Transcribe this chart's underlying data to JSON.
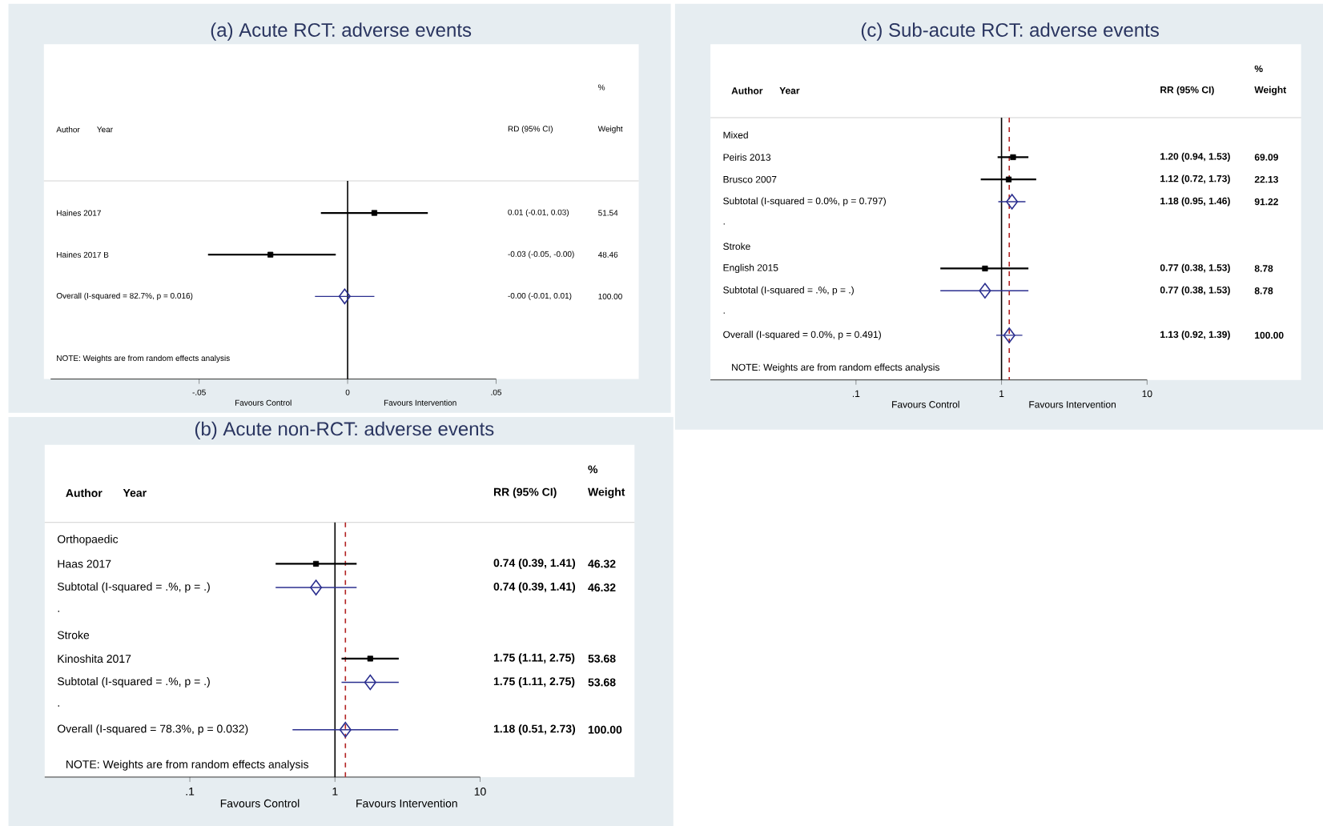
{
  "chart_data": [
    {
      "type": "scatter",
      "title": "(a) Acute RCT: adverse events",
      "orientation": "horizontal",
      "categories": [
        "Haines 2017",
        "Haines 2017 B",
        "Overall (I-squared = 82.7%, p = 0.016)"
      ],
      "series": [
        {
          "marker": "square",
          "color": "#000000",
          "values": [
            0.009,
            -0.026,
            null
          ],
          "errors": [
            [
              -0.009,
              0.027
            ],
            [
              -0.047,
              -0.004
            ],
            null
          ]
        },
        {
          "marker": "diamond",
          "color": "#2b2f8f",
          "values": [
            null,
            null,
            -0.001
          ],
          "errors": [
            null,
            null,
            [
              -0.011,
              0.009
            ]
          ]
        }
      ],
      "xlim": [
        -0.1,
        0.05
      ],
      "xticks": [
        {
          "value": -0.05,
          "label": "-.05"
        },
        0,
        {
          "value": 0.05,
          "label": ".05"
        }
      ],
      "ref_lines": [
        {
          "axis": "x",
          "value": 0,
          "color": "#000000",
          "line_style": "solid"
        }
      ],
      "annotations": [
        "%",
        "Weight",
        "Author",
        "Year",
        "RD (95% CI)",
        "NOTE: Weights are from random effects analysis",
        "Favours Control",
        "Favours Intervention",
        "0.01 (-0.01, 0.03)",
        "51.54",
        "-0.03 (-0.05, -0.00)",
        "48.46",
        "-0.00 (-0.01, 0.01)",
        "100.00"
      ]
    },
    {
      "type": "scatter",
      "title": "(b) Acute non-RCT: adverse events",
      "orientation": "horizontal",
      "log": "x",
      "categories": [
        "Orthopaedic",
        "Haas 2017",
        "Subtotal (I-squared = .%, p = .)",
        ".",
        "Stroke",
        "Kinoshita 2017",
        "Subtotal (I-squared = .%, p = .)",
        ".",
        "Overall (I-squared = 78.3%, p = 0.032)"
      ],
      "series": [
        {
          "marker": "square",
          "color": "#000000",
          "values": [
            null,
            0.74,
            null,
            null,
            null,
            1.75,
            null,
            null,
            null
          ],
          "errors": [
            null,
            [
              0.39,
              1.41
            ],
            null,
            null,
            null,
            [
              1.11,
              2.75
            ],
            null,
            null,
            null
          ]
        },
        {
          "marker": "diamond",
          "color": "#2b2f8f",
          "values": [
            null,
            null,
            0.74,
            null,
            null,
            null,
            1.75,
            null,
            1.18
          ],
          "errors": [
            null,
            null,
            [
              0.39,
              1.41
            ],
            null,
            null,
            null,
            [
              1.11,
              2.75
            ],
            null,
            [
              0.51,
              2.73
            ]
          ]
        }
      ],
      "xlim": [
        0.01,
        10
      ],
      "xticks": [
        {
          "value": 0.1,
          "label": ".1"
        },
        1,
        10
      ],
      "ref_lines": [
        {
          "axis": "x",
          "value": 1,
          "color": "#000000",
          "line_style": "solid"
        },
        {
          "axis": "x",
          "value": 1.18,
          "color": "#b22222",
          "line_style": "dashed"
        }
      ],
      "annotations": [
        "%",
        "Weight",
        "Author",
        "Year",
        "RR (95% CI)",
        "NOTE: Weights are from random effects analysis",
        "Favours Control",
        "Favours Intervention",
        "0.74 (0.39, 1.41)",
        "46.32",
        "0.74 (0.39, 1.41)",
        "46.32",
        "1.75 (1.11, 2.75)",
        "53.68",
        "1.75 (1.11, 2.75)",
        "53.68",
        "1.18 (0.51, 2.73)",
        "100.00"
      ]
    },
    {
      "type": "scatter",
      "title": "(c) Sub-acute RCT: adverse events",
      "orientation": "horizontal",
      "log": "x",
      "categories": [
        "Mixed",
        "Peiris 2013",
        "Brusco 2007",
        "Subtotal (I-squared = 0.0%, p = 0.797)",
        ".",
        "Stroke",
        "English 2015",
        "Subtotal (I-squared = .%, p = .)",
        ".",
        "Overall (I-squared = 0.0%, p = 0.491)"
      ],
      "series": [
        {
          "marker": "square",
          "color": "#000000",
          "values": [
            null,
            1.2,
            1.12,
            null,
            null,
            null,
            0.77,
            null,
            null,
            null
          ],
          "errors": [
            null,
            [
              0.94,
              1.53
            ],
            [
              0.72,
              1.73
            ],
            null,
            null,
            null,
            [
              0.38,
              1.53
            ],
            null,
            null,
            null
          ]
        },
        {
          "marker": "diamond",
          "color": "#2b2f8f",
          "values": [
            null,
            null,
            null,
            1.18,
            null,
            null,
            null,
            0.77,
            null,
            1.13
          ],
          "errors": [
            null,
            null,
            null,
            [
              0.95,
              1.46
            ],
            null,
            null,
            null,
            [
              0.38,
              1.53
            ],
            null,
            [
              0.92,
              1.39
            ]
          ]
        }
      ],
      "xlim": [
        0.01,
        10
      ],
      "xticks": [
        {
          "value": 0.1,
          "label": ".1"
        },
        1,
        10
      ],
      "ref_lines": [
        {
          "axis": "x",
          "value": 1,
          "color": "#000000",
          "line_style": "solid"
        },
        {
          "axis": "x",
          "value": 1.13,
          "color": "#b22222",
          "line_style": "dashed"
        }
      ],
      "annotations": [
        "%",
        "Weight",
        "Author",
        "Year",
        "RR (95% CI)",
        "NOTE: Weights are from random effects analysis",
        "Favours Control",
        "Favours Intervention",
        "1.20 (0.94, 1.53)",
        "69.09",
        "1.12 (0.72, 1.73)",
        "22.13",
        "1.18 (0.95, 1.46)",
        "91.22",
        "0.77 (0.38, 1.53)",
        "8.78",
        "0.77 (0.38, 1.53)",
        "8.78",
        "1.13 (0.92, 1.39)",
        "100.00"
      ]
    }
  ]
}
